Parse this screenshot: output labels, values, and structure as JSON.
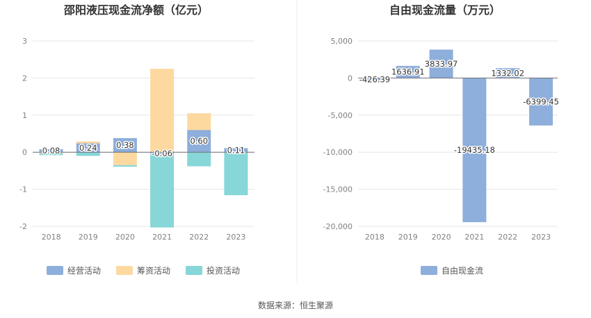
{
  "source_label": "数据来源：恒生聚源",
  "chart_data": [
    {
      "type": "bar",
      "stacked": true,
      "title": "邵阳液压现金流净额（亿元）",
      "categories": [
        "2018",
        "2019",
        "2020",
        "2021",
        "2022",
        "2023"
      ],
      "ylim": [
        -2,
        3
      ],
      "yticks": [
        -2,
        -1,
        0,
        1,
        2,
        3
      ],
      "grid": true,
      "legend_position": "bottom",
      "series": [
        {
          "name": "经营活动",
          "color": "#8eaedb",
          "values": [
            0.08,
            0.24,
            0.38,
            -0.06,
            0.6,
            0.11
          ],
          "labels": [
            "0.08",
            "0.24",
            "0.38",
            "-0.06",
            "0.60",
            "0.11"
          ]
        },
        {
          "name": "筹资活动",
          "color": "#fdd9a0",
          "values": [
            -0.03,
            0.05,
            -0.35,
            2.25,
            0.45,
            -0.01
          ]
        },
        {
          "name": "投资活动",
          "color": "#87d6d8",
          "values": [
            -0.05,
            -0.1,
            -0.04,
            -1.97,
            -0.38,
            -1.15
          ]
        }
      ]
    },
    {
      "type": "bar",
      "title": "自由现金流量（万元）",
      "categories": [
        "2018",
        "2019",
        "2020",
        "2021",
        "2022",
        "2023"
      ],
      "ylim": [
        -20000,
        5000
      ],
      "yticks": [
        -20000,
        -15000,
        -10000,
        -5000,
        0,
        5000
      ],
      "ytick_labels": [
        "-20,000",
        "-15,000",
        "-10,000",
        "-5,000",
        "0",
        "5,000"
      ],
      "grid": true,
      "legend_position": "bottom",
      "series": [
        {
          "name": "自由现金流",
          "color": "#8eaedb",
          "values": [
            -426.39,
            1636.91,
            3833.97,
            -19435.18,
            1332.02,
            -6399.45
          ],
          "labels": [
            "-426.39",
            "1636.91",
            "3833.97",
            "-19435.18",
            "1332.02",
            "-6399.45"
          ]
        }
      ]
    }
  ]
}
